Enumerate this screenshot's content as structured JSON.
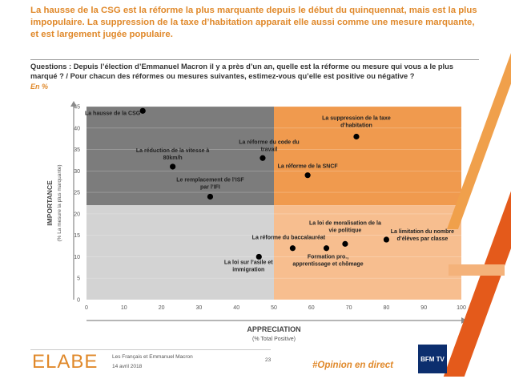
{
  "header": {
    "title": "La hausse de la CSG est la réforme la plus marquante depuis le début du quinquennat, mais est la plus impopulaire. La suppression de la taxe d’habitation apparait elle aussi comme une mesure marquante, et est largement jugée populaire.",
    "question": "Questions : Depuis l’élection d’Emmanuel Macron il y a près d’un an, quelle est la réforme ou mesure qui vous a le plus marqué ? / Pour chacun des réformes ou mesures suivantes, estimez-vous qu’elle est positive ou négative ?",
    "unit": "En %"
  },
  "chart_data": {
    "type": "scatter",
    "xlabel": "APPRECIATION",
    "xlabel_sub": "(% Total Positive)",
    "ylabel": "IMPORTANCE",
    "ylabel_sub": "(% La mesure la plus marquante)",
    "xlim": [
      0,
      100
    ],
    "ylim": [
      0,
      45
    ],
    "x_ticks": [
      0,
      10,
      20,
      30,
      40,
      50,
      60,
      70,
      80,
      90,
      100
    ],
    "y_ticks": [
      0,
      5,
      10,
      15,
      20,
      25,
      30,
      35,
      40,
      45
    ],
    "quadrant_split": {
      "x": 50,
      "y": 22
    },
    "colors": {
      "top_left": "#7c7c7c",
      "bottom_left": "#d3d3d3",
      "top_right": "#f09a4e",
      "bottom_right": "#f7be8f",
      "point": "#000000"
    },
    "points": [
      {
        "label": "La hausse de la CSG",
        "x": 15,
        "y": 44
      },
      {
        "label": "La suppression de la taxe d’habitation",
        "x": 72,
        "y": 38
      },
      {
        "label": "La réduction de la vitesse à 80km/h",
        "x": 23,
        "y": 31
      },
      {
        "label": "La réforme du code du travail",
        "x": 47,
        "y": 33
      },
      {
        "label": "La réforme de la SNCF",
        "x": 59,
        "y": 29
      },
      {
        "label": "Le remplacement de l’ISF par l’IFI",
        "x": 33,
        "y": 24
      },
      {
        "label": "La loi de moralisation de la vie politique",
        "x": 69,
        "y": 13
      },
      {
        "label": "La limitation du nombre d’élèves par classe",
        "x": 80,
        "y": 14
      },
      {
        "label": "La réforme du baccalauréat",
        "x": 55,
        "y": 12
      },
      {
        "label": "Formation pro., apprentissage et chômage",
        "x": 64,
        "y": 12
      },
      {
        "label": "La loi sur l’asile et immigration",
        "x": 46,
        "y": 10
      }
    ]
  },
  "footer": {
    "logo": "ELABE",
    "source_line1": "Les Français et Emmanuel Macron",
    "source_line2": "14 avril 2018",
    "page": "23",
    "hashtag": "#Opinion en direct",
    "tv_logo": "BFM TV"
  }
}
